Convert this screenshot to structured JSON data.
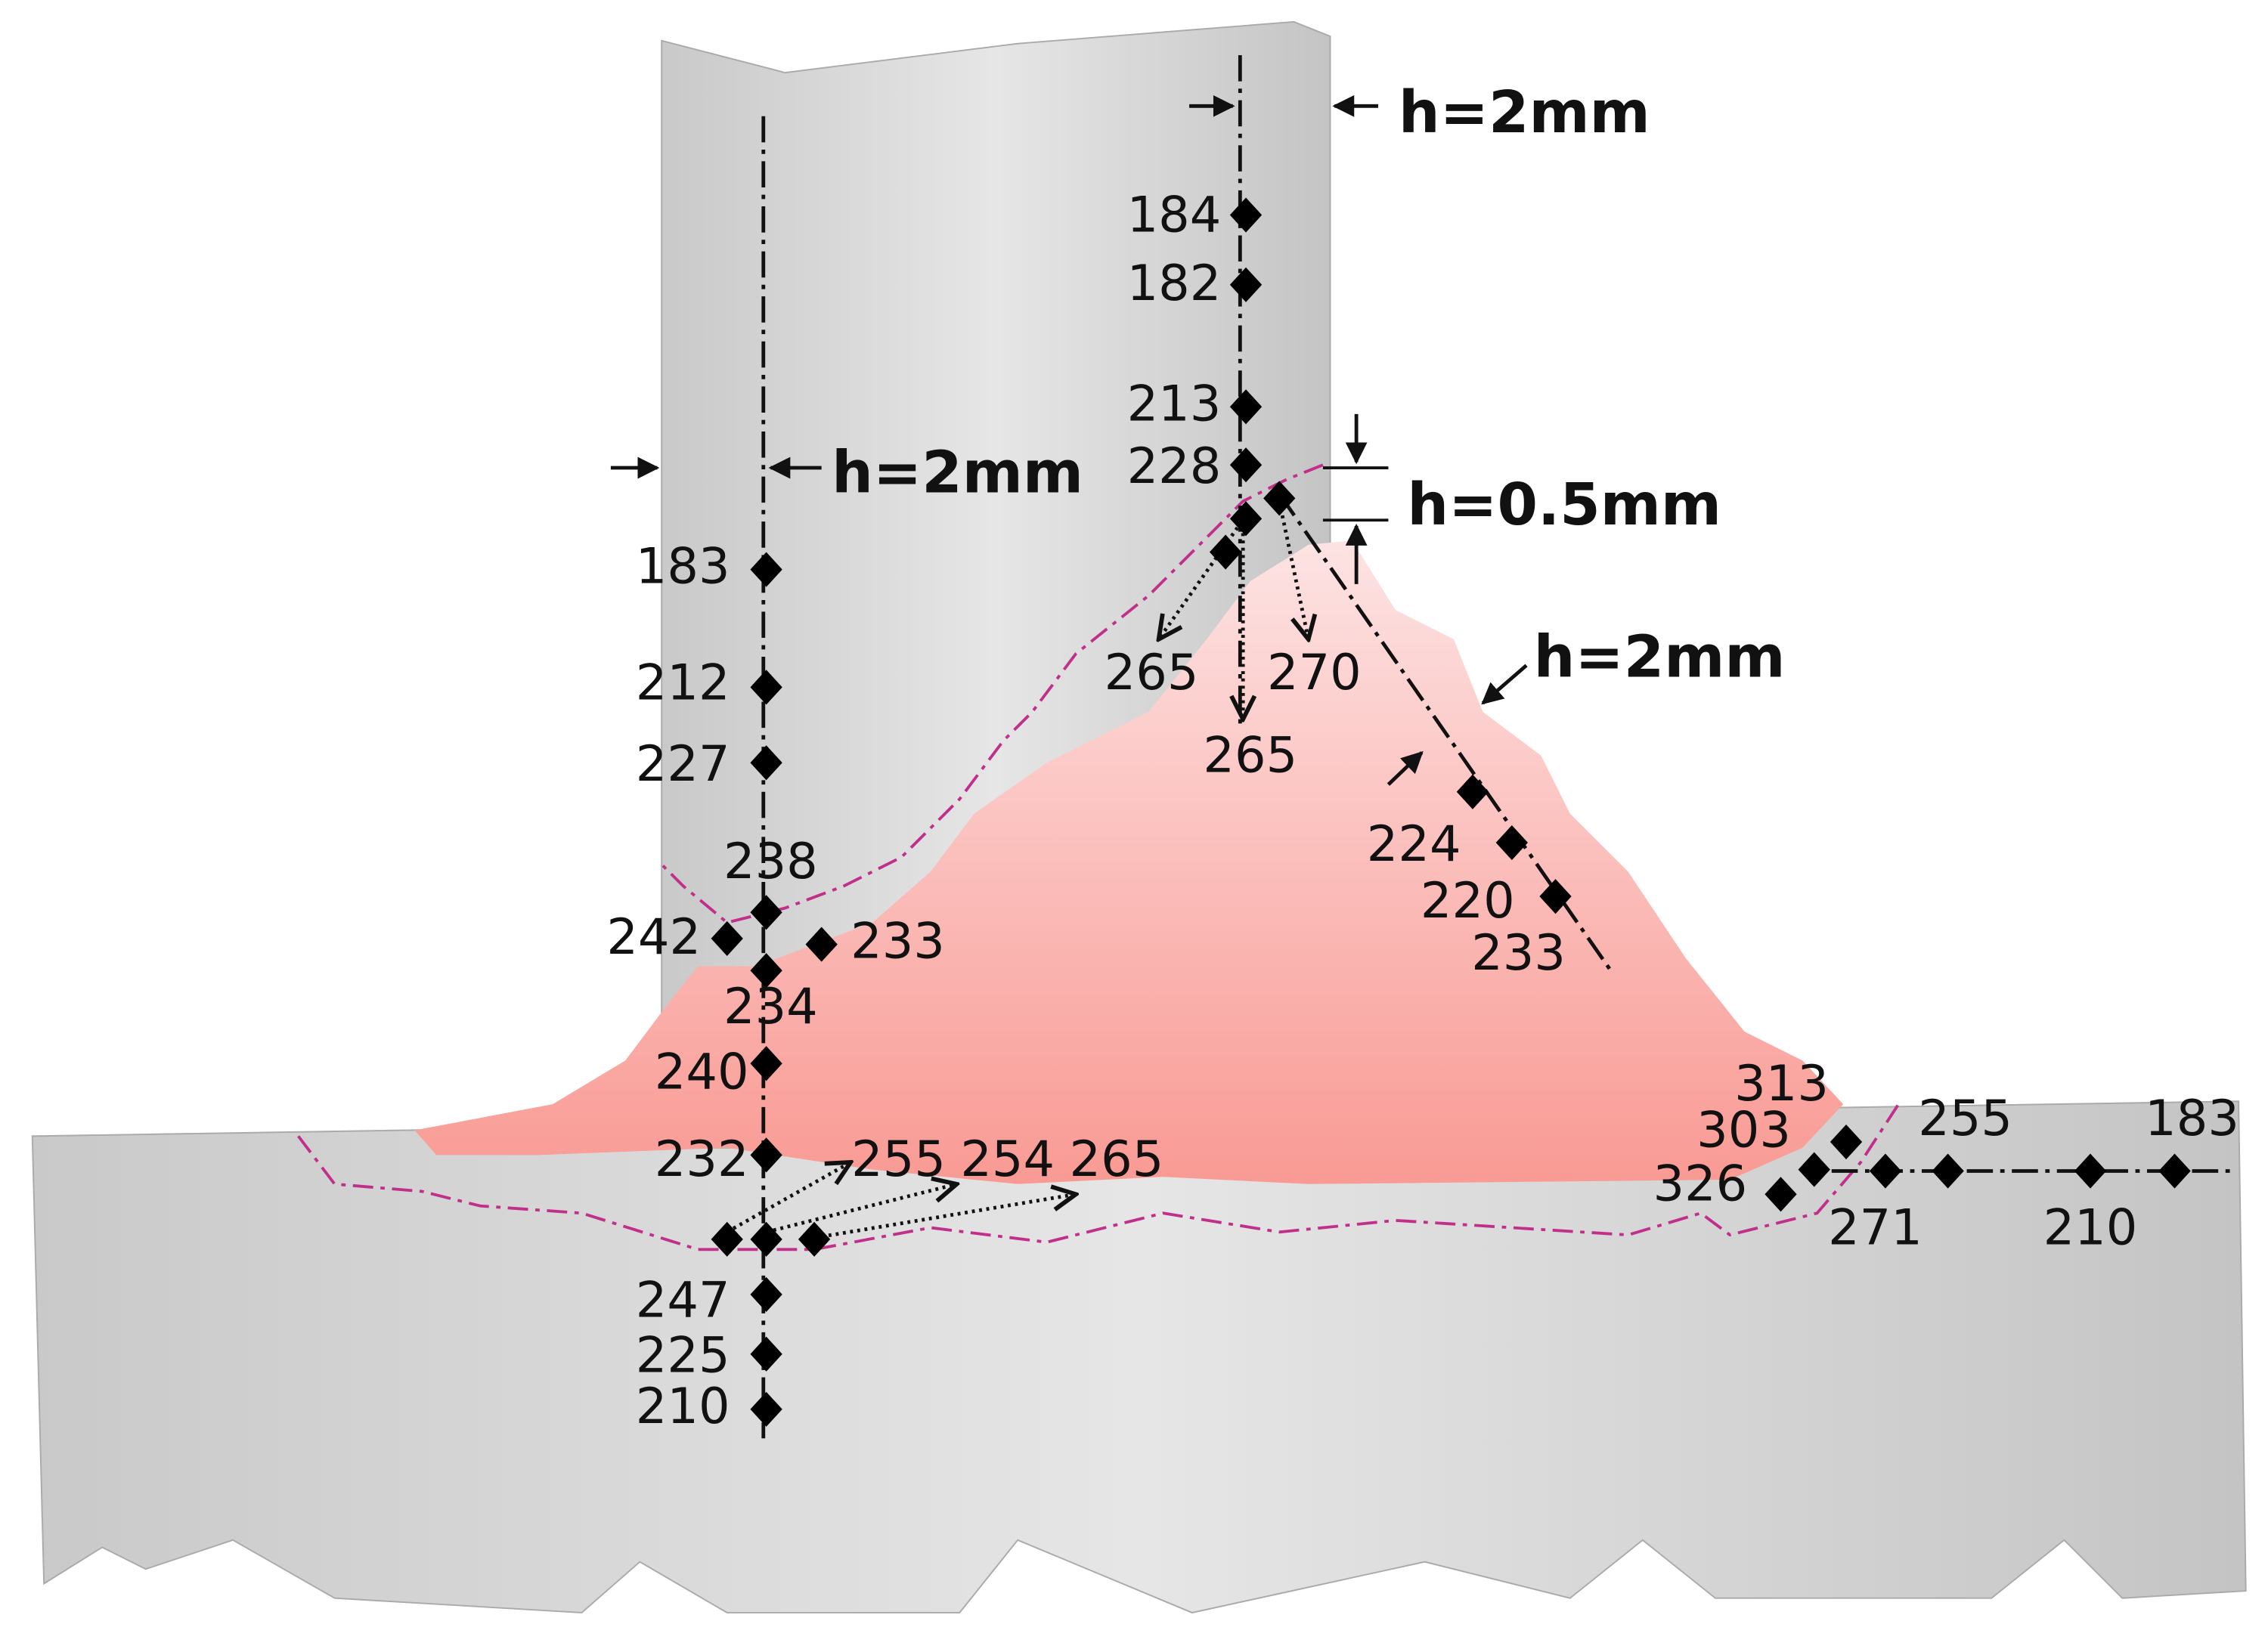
{
  "dimensions": {
    "web_top": "h=2mm",
    "web_left": "h=2mm",
    "toe": "h=0.5mm",
    "weld_face": "h=2mm"
  },
  "hardness": {
    "web_toe_line": [
      184,
      182,
      213,
      228
    ],
    "toe_arrows": [
      265,
      270,
      265
    ],
    "web_center": [
      183,
      212,
      227,
      238,
      242,
      233,
      234,
      240,
      232,
      247,
      225,
      210
    ],
    "root_arrows": [
      255,
      254,
      265
    ],
    "weld_face": [
      224,
      220,
      233
    ],
    "flange_toe": [
      313,
      303,
      326,
      255,
      271,
      183,
      210
    ]
  }
}
